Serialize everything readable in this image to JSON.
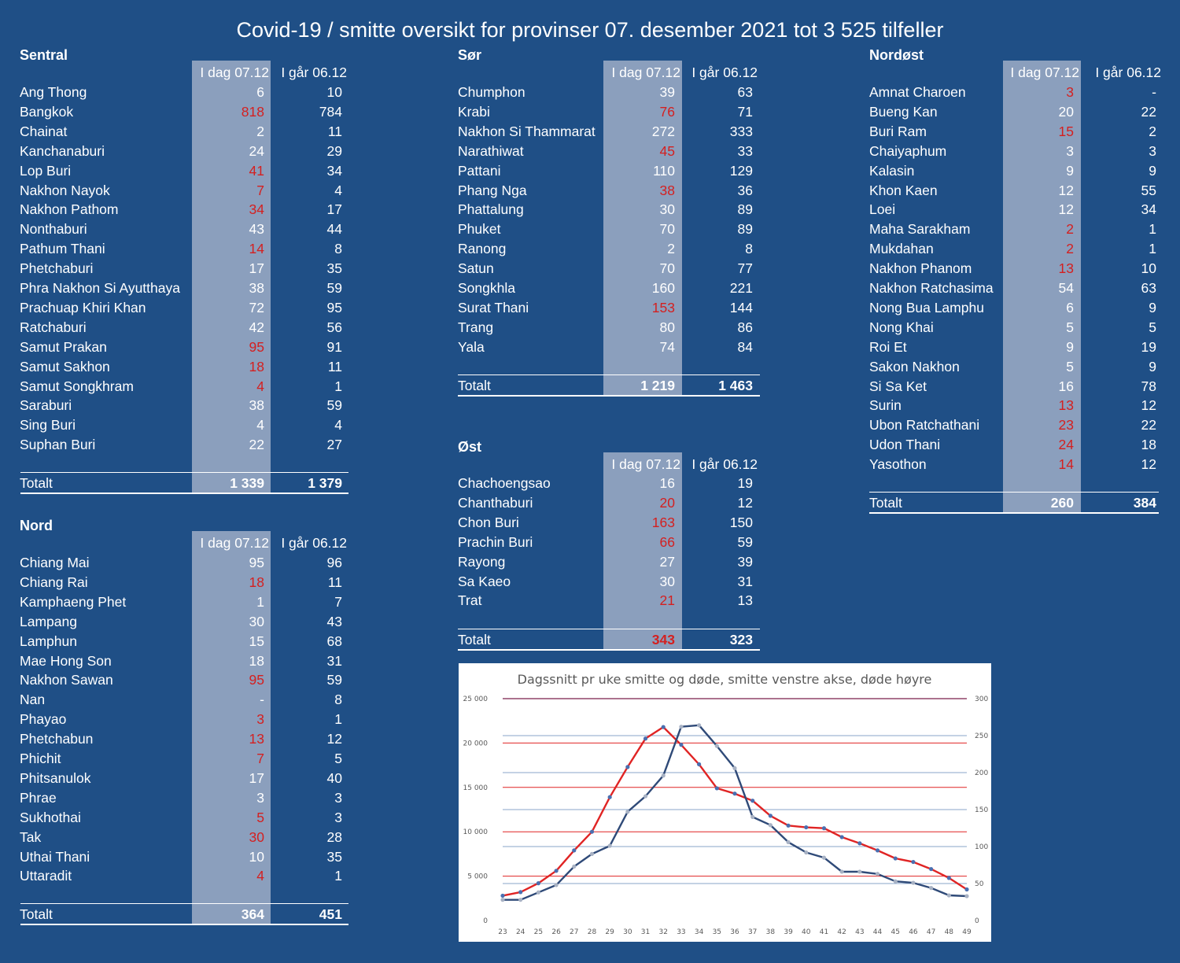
{
  "title": "Covid-19 / smitte oversikt for provinser 07. desember 2021 tot 3 525 tilfeller",
  "colors": {
    "background": "#1f4f86",
    "highlight_column": "#8b9fbd",
    "increase_red": "#d42020",
    "cases_line": "#e02424",
    "deaths_line": "#2f4a78"
  },
  "sections": {
    "sentral": {
      "name": "Sentral",
      "col1": "I dag 07.12",
      "col2": "I går 06.12",
      "rows": [
        {
          "name": "Ang Thong",
          "today": "6",
          "yesterday": "10",
          "up": false
        },
        {
          "name": "Bangkok",
          "today": "818",
          "yesterday": "784",
          "up": true
        },
        {
          "name": "Chainat",
          "today": "2",
          "yesterday": "11",
          "up": false
        },
        {
          "name": "Kanchanaburi",
          "today": "24",
          "yesterday": "29",
          "up": false
        },
        {
          "name": "Lop Buri",
          "today": "41",
          "yesterday": "34",
          "up": true
        },
        {
          "name": "Nakhon Nayok",
          "today": "7",
          "yesterday": "4",
          "up": true
        },
        {
          "name": "Nakhon Pathom",
          "today": "34",
          "yesterday": "17",
          "up": true
        },
        {
          "name": "Nonthaburi",
          "today": "43",
          "yesterday": "44",
          "up": false
        },
        {
          "name": "Pathum Thani",
          "today": "14",
          "yesterday": "8",
          "up": true
        },
        {
          "name": "Phetchaburi",
          "today": "17",
          "yesterday": "35",
          "up": false
        },
        {
          "name": "Phra Nakhon Si Ayutthaya",
          "today": "38",
          "yesterday": "59",
          "up": false
        },
        {
          "name": "Prachuap Khiri Khan",
          "today": "72",
          "yesterday": "95",
          "up": false
        },
        {
          "name": "Ratchaburi",
          "today": "42",
          "yesterday": "56",
          "up": false
        },
        {
          "name": "Samut Prakan",
          "today": "95",
          "yesterday": "91",
          "up": true
        },
        {
          "name": "Samut Sakhon",
          "today": "18",
          "yesterday": "11",
          "up": true
        },
        {
          "name": "Samut Songkhram",
          "today": "4",
          "yesterday": "1",
          "up": true
        },
        {
          "name": "Saraburi",
          "today": "38",
          "yesterday": "59",
          "up": false
        },
        {
          "name": "Sing Buri",
          "today": "4",
          "yesterday": "4",
          "up": false
        },
        {
          "name": "Suphan Buri",
          "today": "22",
          "yesterday": "27",
          "up": false
        }
      ],
      "total_label": "Totalt",
      "total_today": "1 339",
      "total_yesterday": "1 379",
      "total_up": false
    },
    "nord": {
      "name": "Nord",
      "col1": "I dag 07.12",
      "col2": "I går 06.12",
      "rows": [
        {
          "name": "Chiang Mai",
          "today": "95",
          "yesterday": "96",
          "up": false
        },
        {
          "name": "Chiang Rai",
          "today": "18",
          "yesterday": "11",
          "up": true
        },
        {
          "name": "Kamphaeng Phet",
          "today": "1",
          "yesterday": "7",
          "up": false
        },
        {
          "name": "Lampang",
          "today": "30",
          "yesterday": "43",
          "up": false
        },
        {
          "name": "Lamphun",
          "today": "15",
          "yesterday": "68",
          "up": false
        },
        {
          "name": "Mae Hong Son",
          "today": "18",
          "yesterday": "31",
          "up": false
        },
        {
          "name": "Nakhon Sawan",
          "today": "95",
          "yesterday": "59",
          "up": true
        },
        {
          "name": "Nan",
          "today": "-",
          "yesterday": "8",
          "up": false
        },
        {
          "name": "Phayao",
          "today": "3",
          "yesterday": "1",
          "up": true
        },
        {
          "name": "Phetchabun",
          "today": "13",
          "yesterday": "12",
          "up": true
        },
        {
          "name": "Phichit",
          "today": "7",
          "yesterday": "5",
          "up": true
        },
        {
          "name": "Phitsanulok",
          "today": "17",
          "yesterday": "40",
          "up": false
        },
        {
          "name": "Phrae",
          "today": "3",
          "yesterday": "3",
          "up": false
        },
        {
          "name": "Sukhothai",
          "today": "5",
          "yesterday": "3",
          "up": true
        },
        {
          "name": "Tak",
          "today": "30",
          "yesterday": "28",
          "up": true
        },
        {
          "name": "Uthai Thani",
          "today": "10",
          "yesterday": "35",
          "up": false
        },
        {
          "name": "Uttaradit",
          "today": "4",
          "yesterday": "1",
          "up": true
        }
      ],
      "total_label": "Totalt",
      "total_today": "364",
      "total_yesterday": "451",
      "total_up": false
    },
    "sor": {
      "name": "Sør",
      "col1": "I dag 07.12",
      "col2": "I går 06.12",
      "rows": [
        {
          "name": "Chumphon",
          "today": "39",
          "yesterday": "63",
          "up": false
        },
        {
          "name": "Krabi",
          "today": "76",
          "yesterday": "71",
          "up": true
        },
        {
          "name": "Nakhon Si Thammarat",
          "today": "272",
          "yesterday": "333",
          "up": false
        },
        {
          "name": "Narathiwat",
          "today": "45",
          "yesterday": "33",
          "up": true
        },
        {
          "name": "Pattani",
          "today": "110",
          "yesterday": "129",
          "up": false
        },
        {
          "name": "Phang Nga",
          "today": "38",
          "yesterday": "36",
          "up": true
        },
        {
          "name": "Phattalung",
          "today": "30",
          "yesterday": "89",
          "up": false
        },
        {
          "name": "Phuket",
          "today": "70",
          "yesterday": "89",
          "up": false
        },
        {
          "name": "Ranong",
          "today": "2",
          "yesterday": "8",
          "up": false
        },
        {
          "name": "Satun",
          "today": "70",
          "yesterday": "77",
          "up": false
        },
        {
          "name": "Songkhla",
          "today": "160",
          "yesterday": "221",
          "up": false
        },
        {
          "name": "Surat Thani",
          "today": "153",
          "yesterday": "144",
          "up": true
        },
        {
          "name": "Trang",
          "today": "80",
          "yesterday": "86",
          "up": false
        },
        {
          "name": "Yala",
          "today": "74",
          "yesterday": "84",
          "up": false
        }
      ],
      "total_label": "Totalt",
      "total_today": "1 219",
      "total_yesterday": "1 463",
      "total_up": false
    },
    "ost": {
      "name": "Øst",
      "col1": "I dag 07.12",
      "col2": "I går 06.12",
      "rows": [
        {
          "name": "Chachoengsao",
          "today": "16",
          "yesterday": "19",
          "up": false
        },
        {
          "name": "Chanthaburi",
          "today": "20",
          "yesterday": "12",
          "up": true
        },
        {
          "name": "Chon Buri",
          "today": "163",
          "yesterday": "150",
          "up": true
        },
        {
          "name": "Prachin Buri",
          "today": "66",
          "yesterday": "59",
          "up": true
        },
        {
          "name": "Rayong",
          "today": "27",
          "yesterday": "39",
          "up": false
        },
        {
          "name": "Sa Kaeo",
          "today": "30",
          "yesterday": "31",
          "up": false
        },
        {
          "name": "Trat",
          "today": "21",
          "yesterday": "13",
          "up": true
        }
      ],
      "total_label": "Totalt",
      "total_today": "343",
      "total_yesterday": "323",
      "total_up": true
    },
    "nordost": {
      "name": "Nordøst",
      "col1": "I dag 07.12",
      "col2": "I går 06.12",
      "rows": [
        {
          "name": "Amnat Charoen",
          "today": "3",
          "yesterday": "-",
          "up": true
        },
        {
          "name": "Bueng Kan",
          "today": "20",
          "yesterday": "22",
          "up": false
        },
        {
          "name": "Buri Ram",
          "today": "15",
          "yesterday": "2",
          "up": true
        },
        {
          "name": "Chaiyaphum",
          "today": "3",
          "yesterday": "3",
          "up": false
        },
        {
          "name": "Kalasin",
          "today": "9",
          "yesterday": "9",
          "up": false
        },
        {
          "name": "Khon Kaen",
          "today": "12",
          "yesterday": "55",
          "up": false
        },
        {
          "name": "Loei",
          "today": "12",
          "yesterday": "34",
          "up": false
        },
        {
          "name": "Maha Sarakham",
          "today": "2",
          "yesterday": "1",
          "up": true
        },
        {
          "name": "Mukdahan",
          "today": "2",
          "yesterday": "1",
          "up": true
        },
        {
          "name": "Nakhon Phanom",
          "today": "13",
          "yesterday": "10",
          "up": true
        },
        {
          "name": "Nakhon Ratchasima",
          "today": "54",
          "yesterday": "63",
          "up": false
        },
        {
          "name": "Nong Bua Lamphu",
          "today": "6",
          "yesterday": "9",
          "up": false
        },
        {
          "name": "Nong Khai",
          "today": "5",
          "yesterday": "5",
          "up": false
        },
        {
          "name": "Roi Et",
          "today": "9",
          "yesterday": "19",
          "up": false
        },
        {
          "name": "Sakon Nakhon",
          "today": "5",
          "yesterday": "9",
          "up": false
        },
        {
          "name": "Si Sa Ket",
          "today": "16",
          "yesterday": "78",
          "up": false
        },
        {
          "name": "Surin",
          "today": "13",
          "yesterday": "12",
          "up": true
        },
        {
          "name": "Ubon Ratchathani",
          "today": "23",
          "yesterday": "22",
          "up": true
        },
        {
          "name": "Udon Thani",
          "today": "24",
          "yesterday": "18",
          "up": true
        },
        {
          "name": "Yasothon",
          "today": "14",
          "yesterday": "12",
          "up": true
        }
      ],
      "total_label": "Totalt",
      "total_today": "260",
      "total_yesterday": "384",
      "total_up": false
    }
  },
  "chart_data": {
    "type": "line",
    "title": "Dagssnitt pr uke smitte og døde, smitte venstre akse, døde høyre",
    "x": [
      23,
      24,
      25,
      26,
      27,
      28,
      29,
      30,
      31,
      32,
      33,
      34,
      35,
      36,
      37,
      38,
      39,
      40,
      41,
      42,
      43,
      44,
      45,
      46,
      47,
      48,
      49
    ],
    "y_left": {
      "min": 0,
      "max": 25000,
      "ticks": [
        "0",
        "5 000",
        "10 000",
        "15 000",
        "20 000",
        "25 000"
      ]
    },
    "y_right": {
      "min": 0,
      "max": 300,
      "ticks": [
        "0",
        "50",
        "100",
        "150",
        "200",
        "250",
        "300"
      ]
    },
    "series": [
      {
        "axis": "left",
        "color": "#e02424",
        "values": [
          2800,
          3200,
          4200,
          5600,
          7900,
          10000,
          13900,
          17300,
          20500,
          21800,
          19800,
          17600,
          14900,
          14300,
          13500,
          11800,
          10700,
          10500,
          10400,
          9400,
          8700,
          7900,
          7000,
          6600,
          5800,
          4800,
          3500
        ]
      },
      {
        "axis": "right",
        "color": "#2f4a78",
        "values": [
          28,
          28,
          38,
          48,
          73,
          90,
          101,
          147,
          168,
          196,
          262,
          264,
          236,
          206,
          140,
          129,
          106,
          92,
          85,
          66,
          66,
          63,
          53,
          51,
          44,
          34,
          33
        ]
      }
    ],
    "grid": true,
    "legend": "none"
  }
}
